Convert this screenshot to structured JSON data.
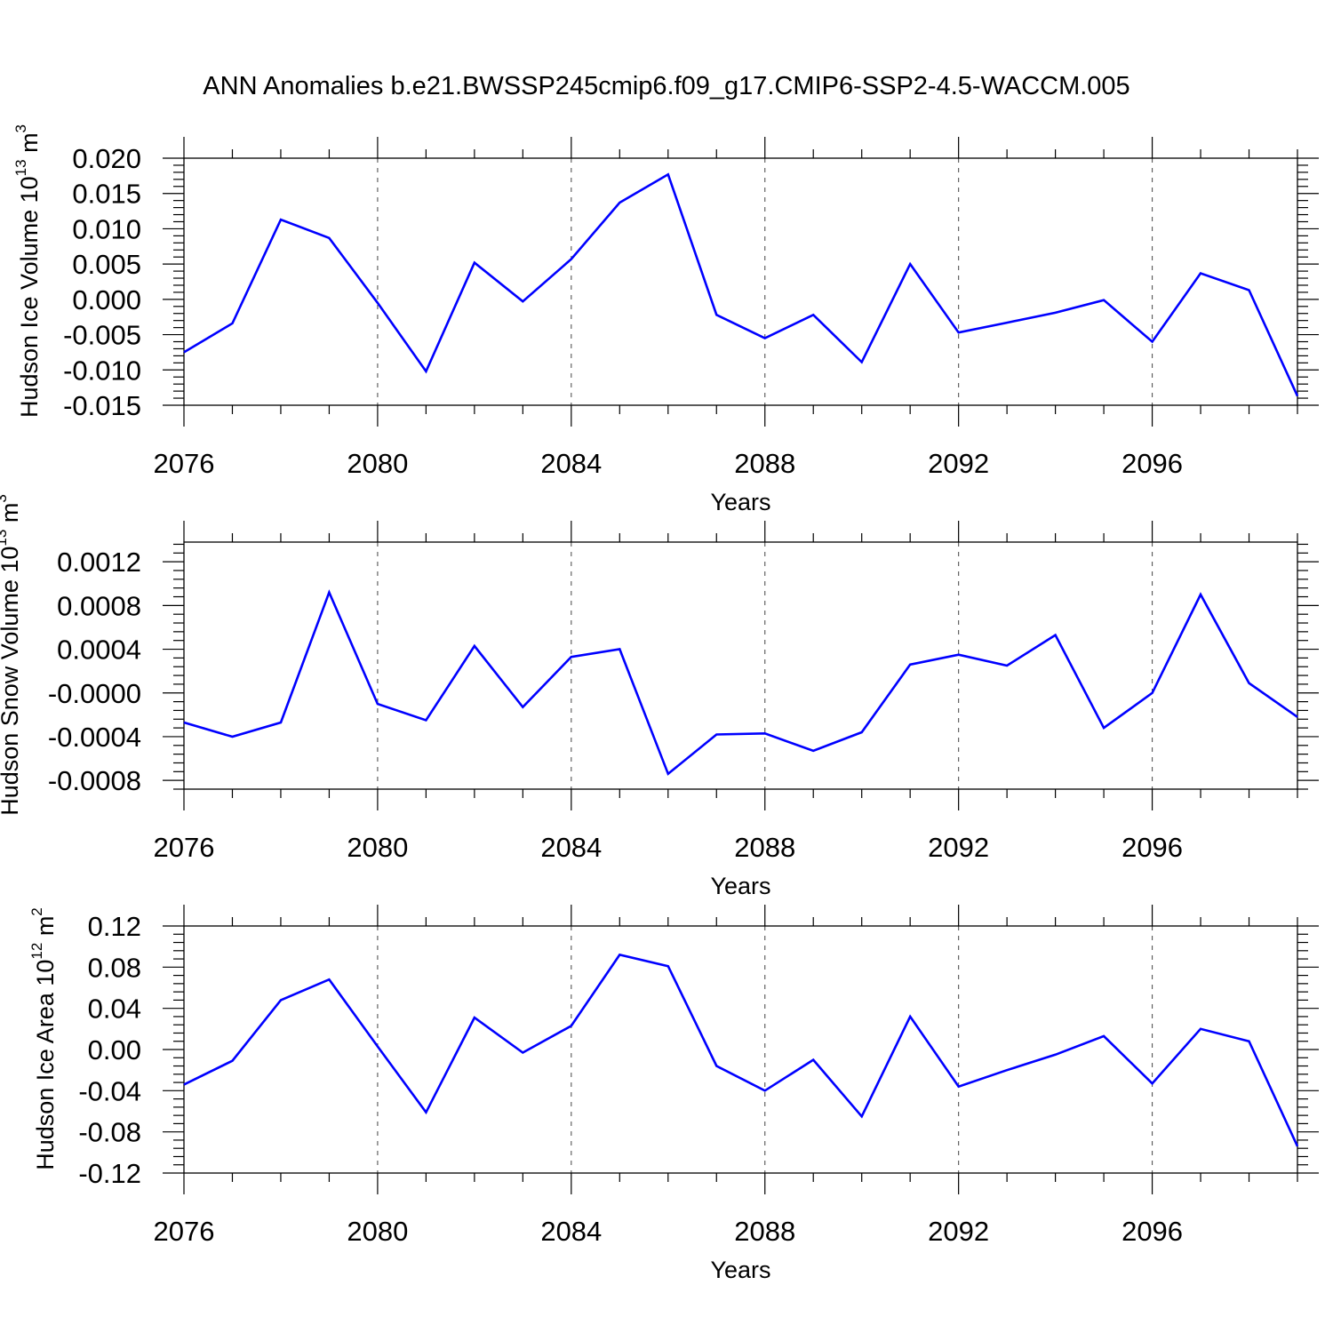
{
  "title": "ANN Anomalies b.e21.BWSSP245cmip6.f09_g17.CMIP6-SSP2-4.5-WACCM.005",
  "chart_data": [
    {
      "type": "line",
      "ylabel": "Hudson Ice Volume 10",
      "ylabel_exp": "13",
      "ylabel_unit": " m",
      "ylabel_unit_exp": "3",
      "xlabel": "Years",
      "xlim": [
        2076,
        2099
      ],
      "ylim": [
        -0.015,
        0.02
      ],
      "xticks": [
        2076,
        2080,
        2084,
        2088,
        2092,
        2096
      ],
      "xtick_labels": [
        "2076",
        "2080",
        "2084",
        "2088",
        "2092",
        "2096"
      ],
      "yticks": [
        -0.015,
        -0.01,
        -0.005,
        0.0,
        0.005,
        0.01,
        0.015,
        0.02
      ],
      "ytick_labels": [
        "-0.015",
        "-0.010",
        "-0.005",
        "0.000",
        "0.005",
        "0.010",
        "0.015",
        "0.020"
      ],
      "grid_x_dashed": true,
      "color": "#0000ff",
      "x": [
        2076,
        2077,
        2078,
        2079,
        2080,
        2081,
        2082,
        2083,
        2084,
        2085,
        2086,
        2087,
        2088,
        2089,
        2090,
        2091,
        2092,
        2093,
        2094,
        2095,
        2096,
        2097,
        2098,
        2099
      ],
      "y": [
        -0.0075,
        -0.0034,
        0.0113,
        0.0087,
        -0.0005,
        -0.0102,
        0.0052,
        -0.0003,
        0.0057,
        0.0137,
        0.0177,
        -0.0022,
        -0.0055,
        -0.0022,
        -0.0089,
        0.005,
        -0.0047,
        -0.0033,
        -0.0019,
        -0.0001,
        -0.006,
        0.0037,
        0.0013,
        -0.0137
      ]
    },
    {
      "type": "line",
      "ylabel": "Hudson Snow Volume 10",
      "ylabel_exp": "13",
      "ylabel_unit": " m",
      "ylabel_unit_exp": "3",
      "xlabel": "Years",
      "xlim": [
        2076,
        2099
      ],
      "ylim": [
        -0.00088,
        0.00138
      ],
      "xticks": [
        2076,
        2080,
        2084,
        2088,
        2092,
        2096
      ],
      "xtick_labels": [
        "2076",
        "2080",
        "2084",
        "2088",
        "2092",
        "2096"
      ],
      "yticks": [
        -0.0008,
        -0.0004,
        0.0,
        0.0004,
        0.0008,
        0.0012
      ],
      "ytick_labels": [
        "-0.0008",
        "-0.0004",
        "-0.0000",
        "0.0004",
        "0.0008",
        "0.0012"
      ],
      "grid_x_dashed": true,
      "color": "#0000ff",
      "x": [
        2076,
        2077,
        2078,
        2079,
        2080,
        2081,
        2082,
        2083,
        2084,
        2085,
        2086,
        2087,
        2088,
        2089,
        2090,
        2091,
        2092,
        2093,
        2094,
        2095,
        2096,
        2097,
        2098,
        2099
      ],
      "y": [
        -0.00027,
        -0.0004,
        -0.00027,
        0.00092,
        -0.0001,
        -0.00025,
        0.00043,
        -0.00013,
        0.00033,
        0.0004,
        -0.00074,
        -0.00038,
        -0.00037,
        -0.00053,
        -0.00036,
        0.00026,
        0.00035,
        0.00025,
        0.00053,
        -0.00032,
        0.0,
        0.0009,
        9e-05,
        -0.00022
      ]
    },
    {
      "type": "line",
      "ylabel": "Hudson Ice Area 10",
      "ylabel_exp": "12",
      "ylabel_unit": " m",
      "ylabel_unit_exp": "2",
      "xlabel": "Years",
      "xlim": [
        2076,
        2099
      ],
      "ylim": [
        -0.12,
        0.12
      ],
      "xticks": [
        2076,
        2080,
        2084,
        2088,
        2092,
        2096
      ],
      "xtick_labels": [
        "2076",
        "2080",
        "2084",
        "2088",
        "2092",
        "2096"
      ],
      "yticks": [
        -0.12,
        -0.08,
        -0.04,
        0.0,
        0.04,
        0.08,
        0.12
      ],
      "ytick_labels": [
        "-0.12",
        "-0.08",
        "-0.04",
        "0.00",
        "0.04",
        "0.08",
        "0.12"
      ],
      "grid_x_dashed": true,
      "color": "#0000ff",
      "x": [
        2076,
        2077,
        2078,
        2079,
        2080,
        2081,
        2082,
        2083,
        2084,
        2085,
        2086,
        2087,
        2088,
        2089,
        2090,
        2091,
        2092,
        2093,
        2094,
        2095,
        2096,
        2097,
        2098,
        2099
      ],
      "y": [
        -0.034,
        -0.011,
        0.048,
        0.068,
        0.003,
        -0.061,
        0.031,
        -0.003,
        0.023,
        0.092,
        0.081,
        -0.016,
        -0.04,
        -0.01,
        -0.065,
        0.032,
        -0.036,
        -0.02,
        -0.005,
        0.013,
        -0.033,
        0.02,
        0.008,
        -0.094
      ]
    }
  ]
}
